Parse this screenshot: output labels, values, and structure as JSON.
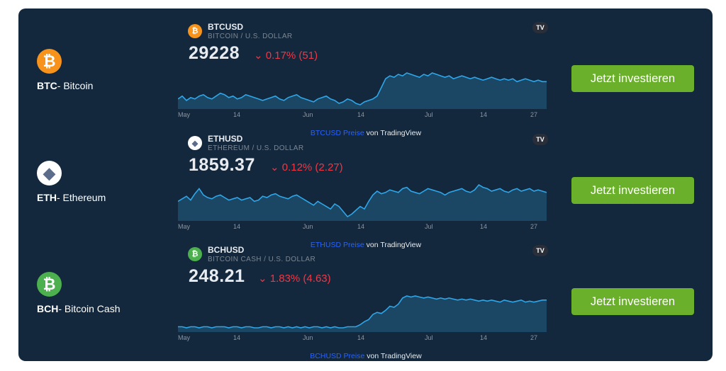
{
  "rows": [
    {
      "coin": {
        "code": "BTC",
        "name": "- Bitcoin",
        "icon": "bitcoin-icon",
        "color": "#f7931a",
        "glyph": "₿"
      },
      "widget": {
        "symbol": "BTCUSD",
        "pair_name": "BITCOIN / U.S. DOLLAR",
        "price": "29228",
        "change": "⌄ 0.17% (51)",
        "axis": [
          "May",
          "14",
          "Jun",
          "14",
          "Jul",
          "14",
          "27"
        ],
        "attribution_link": "BTCUSD Preise",
        "attribution_text": " von TradingView",
        "series": [
          58,
          60,
          57,
          59,
          58,
          60,
          61,
          59,
          58,
          60,
          62,
          61,
          59,
          60,
          58,
          59,
          61,
          60,
          59,
          58,
          57,
          58,
          59,
          60,
          58,
          57,
          59,
          60,
          61,
          59,
          58,
          57,
          56,
          58,
          59,
          60,
          58,
          57,
          55,
          56,
          58,
          57,
          55,
          54,
          56,
          57,
          58,
          60,
          66,
          72,
          74,
          73,
          75,
          74,
          76,
          75,
          74,
          73,
          75,
          74,
          76,
          75,
          74,
          73,
          74,
          72,
          73,
          74,
          73,
          72,
          73,
          72,
          71,
          72,
          73,
          72,
          71,
          72,
          71,
          72,
          70,
          71,
          72,
          71,
          70,
          71,
          70,
          70
        ]
      },
      "button": "Jetzt investieren"
    },
    {
      "coin": {
        "code": "ETH",
        "name": "- Ethereum",
        "icon": "ethereum-icon",
        "color": "#ffffff",
        "glyph": "◆"
      },
      "widget": {
        "symbol": "ETHUSD",
        "pair_name": "ETHEREUM / U.S. DOLLAR",
        "price": "1859.37",
        "change": "⌄ 0.12% (2.27)",
        "axis": [
          "May",
          "14",
          "Jun",
          "14",
          "Jul",
          "14",
          "27"
        ],
        "attribution_link": "ETHUSD Preise",
        "attribution_text": " von TradingView",
        "series": [
          62,
          64,
          66,
          63,
          68,
          72,
          67,
          65,
          64,
          66,
          67,
          65,
          63,
          64,
          65,
          63,
          64,
          65,
          62,
          63,
          66,
          65,
          67,
          68,
          66,
          65,
          64,
          66,
          67,
          65,
          63,
          61,
          59,
          62,
          60,
          58,
          56,
          60,
          58,
          54,
          50,
          52,
          55,
          58,
          56,
          62,
          67,
          70,
          68,
          69,
          71,
          70,
          69,
          72,
          73,
          70,
          69,
          68,
          70,
          72,
          71,
          70,
          69,
          67,
          69,
          70,
          71,
          72,
          70,
          69,
          71,
          75,
          73,
          72,
          70,
          71,
          72,
          70,
          69,
          71,
          72,
          70,
          71,
          72,
          70,
          71,
          70,
          69
        ]
      },
      "button": "Jetzt investieren"
    },
    {
      "coin": {
        "code": "BCH",
        "name": "- Bitcoin Cash",
        "icon": "bitcoin-cash-icon",
        "color": "#4cb04e",
        "glyph": "₿"
      },
      "widget": {
        "symbol": "BCHUSD",
        "pair_name": "BITCOIN CASH / U.S. DOLLAR",
        "price": "248.21",
        "change": "⌄ 1.83% (4.63)",
        "axis": [
          "May",
          "14",
          "Jun",
          "14",
          "Jul",
          "14",
          "27"
        ],
        "attribution_link": "BCHUSD Preise",
        "attribution_text": " von TradingView",
        "series": [
          50,
          50,
          49,
          50,
          50,
          49,
          50,
          50,
          49,
          50,
          50,
          50,
          49,
          50,
          50,
          49,
          50,
          50,
          49,
          49,
          50,
          50,
          49,
          50,
          50,
          49,
          50,
          49,
          50,
          49,
          50,
          49,
          50,
          50,
          49,
          50,
          49,
          50,
          49,
          49,
          50,
          50,
          50,
          52,
          55,
          57,
          62,
          64,
          63,
          66,
          70,
          69,
          72,
          78,
          80,
          79,
          80,
          79,
          78,
          79,
          78,
          77,
          78,
          77,
          78,
          77,
          76,
          77,
          76,
          77,
          76,
          75,
          76,
          75,
          76,
          75,
          74,
          76,
          75,
          74,
          75,
          76,
          74,
          75,
          74,
          75,
          76,
          76
        ]
      },
      "button": "Jetzt investieren"
    }
  ]
}
